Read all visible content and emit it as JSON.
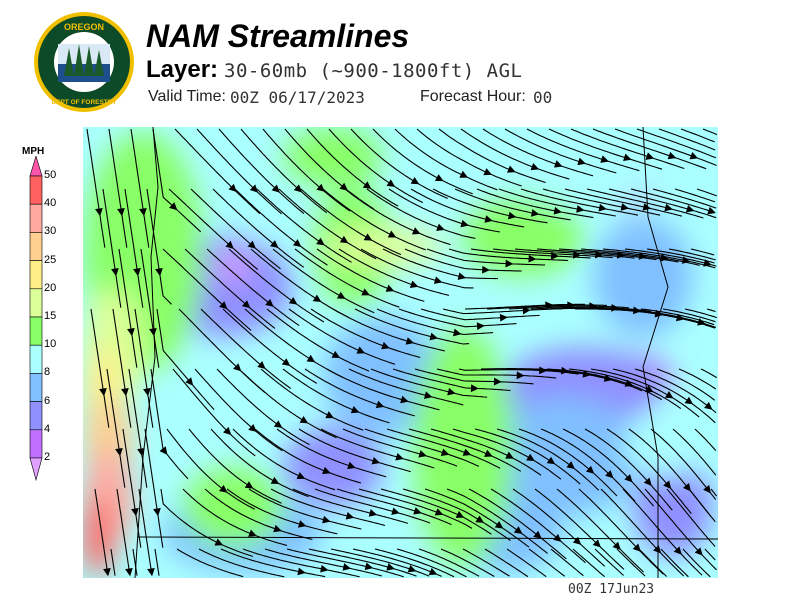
{
  "header": {
    "title": "NAM Streamlines",
    "layer_label": "Layer:",
    "layer_value": "30-60mb (~900-1800ft) AGL",
    "valid_time_label": "Valid Time:",
    "valid_time_value": "00Z 06/17/2023",
    "forecast_hour_label": "Forecast Hour:",
    "forecast_hour_value": "00"
  },
  "logo": {
    "text_top": "OREGON",
    "text_bottom": "DEPARTMENT OF FORESTRY"
  },
  "legend": {
    "unit": "MPH",
    "ticks": [
      "50",
      "40",
      "30",
      "25",
      "20",
      "15",
      "10",
      "8",
      "6",
      "4",
      "2"
    ],
    "colors": {
      "over": "#ff55aa",
      "40-50": "#ff6060",
      "30-40": "#ffaaa0",
      "25-30": "#ffd090",
      "20-25": "#ffee88",
      "15-20": "#ddff99",
      "10-15": "#88ff66",
      "8-10": "#aaffff",
      "6-8": "#80c0ff",
      "4-6": "#9090ff",
      "2-4": "#c070ff",
      "under": "#e0a0ff"
    }
  },
  "footer": {
    "timestamp": "00Z 17Jun23"
  }
}
